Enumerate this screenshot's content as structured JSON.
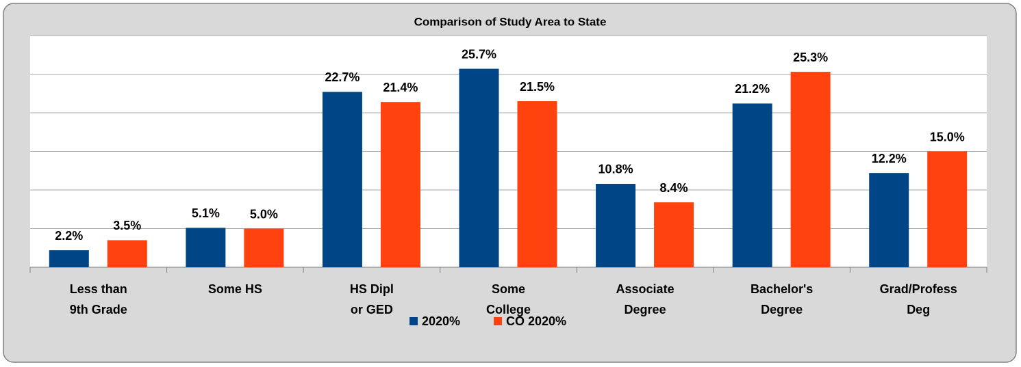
{
  "chart_data": {
    "type": "bar",
    "title": "Comparison of Study Area to State",
    "categories": [
      "Less than\n9th Grade",
      "Some HS",
      "HS Dipl\nor GED",
      "Some\nCollege",
      "Associate\nDegree",
      "Bachelor's\nDegree",
      "Grad/Profess\nDeg"
    ],
    "series": [
      {
        "name": "2020%",
        "color": "#004586",
        "values": [
          2.2,
          5.1,
          22.7,
          25.7,
          10.8,
          21.2,
          12.2
        ],
        "value_labels": [
          "2.2%",
          "5.1%",
          "22.7%",
          "25.7%",
          "10.8%",
          "21.2%",
          "12.2%"
        ]
      },
      {
        "name": "CO 2020%",
        "color": "#ff420e",
        "values": [
          3.5,
          5.0,
          21.4,
          21.5,
          8.4,
          25.3,
          15.0
        ],
        "value_labels": [
          "3.5%",
          "5.0%",
          "21.4%",
          "21.5%",
          "8.4%",
          "25.3%",
          "15.0%"
        ]
      }
    ],
    "ylim": [
      0,
      30
    ],
    "yticks": [
      0,
      5,
      10,
      15,
      20,
      25,
      30
    ],
    "grid": true,
    "legend": "bottom"
  }
}
